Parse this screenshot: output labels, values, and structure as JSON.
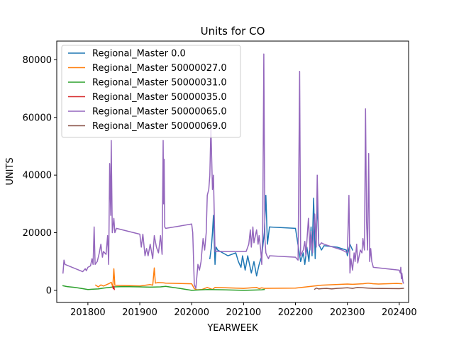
{
  "chart_data": {
    "type": "line",
    "title": "Units for CO",
    "xlabel": "YEARWEEK",
    "ylabel": "UNITS",
    "xlim": [
      201740,
      202418
    ],
    "ylim": [
      -4200,
      86500
    ],
    "x_ticks": [
      201800,
      201900,
      202000,
      202100,
      202200,
      202300,
      202400
    ],
    "y_ticks": [
      0,
      20000,
      40000,
      60000,
      80000
    ],
    "x_tick_labels": [
      "201800",
      "201900",
      "202000",
      "202100",
      "202200",
      "202300",
      "202400"
    ],
    "y_tick_labels": [
      "0",
      "20000",
      "40000",
      "60000",
      "80000"
    ],
    "grid": false,
    "legend_position": "upper-left",
    "series": [
      {
        "name": "Regional_Master 0.0",
        "color": "#1f77b4",
        "points": [
          [
            202035,
            11000
          ],
          [
            202038,
            15000
          ],
          [
            202040,
            20000
          ],
          [
            202042,
            26000
          ],
          [
            202045,
            9000
          ],
          [
            202047,
            15000
          ],
          [
            202050,
            14000
          ],
          [
            202070,
            12000
          ],
          [
            202085,
            13000
          ],
          [
            202090,
            10000
          ],
          [
            202095,
            8000
          ],
          [
            202098,
            12000
          ],
          [
            202100,
            10000
          ],
          [
            202103,
            7000
          ],
          [
            202108,
            12000
          ],
          [
            202115,
            6000
          ],
          [
            202120,
            10000
          ],
          [
            202125,
            5000
          ],
          [
            202130,
            9000
          ],
          [
            202135,
            12000
          ],
          [
            202140,
            20000
          ],
          [
            202143,
            33000
          ],
          [
            202146,
            16000
          ],
          [
            202150,
            22000
          ],
          [
            202200,
            21500
          ],
          [
            202210,
            10000
          ],
          [
            202215,
            13000
          ],
          [
            202218,
            9000
          ],
          [
            202222,
            15000
          ],
          [
            202226,
            10000
          ],
          [
            202230,
            22000
          ],
          [
            202232,
            12000
          ],
          [
            202235,
            32000
          ],
          [
            202238,
            11000
          ],
          [
            202242,
            30000
          ],
          [
            202245,
            16000
          ],
          [
            202250,
            14000
          ],
          [
            202255,
            15500
          ],
          [
            202280,
            15000
          ],
          [
            202298,
            14000
          ],
          [
            202300,
            12000
          ],
          [
            202305,
            16000
          ],
          [
            202310,
            14000
          ]
        ]
      },
      {
        "name": "Regional_Master 50000027.0",
        "color": "#ff7f0e",
        "points": [
          [
            201815,
            1800
          ],
          [
            201820,
            1200
          ],
          [
            201825,
            1900
          ],
          [
            201830,
            1500
          ],
          [
            201840,
            2300
          ],
          [
            201845,
            2800
          ],
          [
            201848,
            1200
          ],
          [
            201850,
            7500
          ],
          [
            201852,
            1800
          ],
          [
            201870,
            1700
          ],
          [
            201900,
            1500
          ],
          [
            201920,
            2000
          ],
          [
            201925,
            1800
          ],
          [
            201928,
            7800
          ],
          [
            201930,
            2500
          ],
          [
            201935,
            2700
          ],
          [
            201945,
            2600
          ],
          [
            201950,
            2500
          ],
          [
            202000,
            2300
          ],
          [
            202005,
            600
          ],
          [
            202010,
            200
          ],
          [
            202020,
            300
          ],
          [
            202030,
            1000
          ],
          [
            202040,
            300
          ],
          [
            202045,
            1000
          ],
          [
            202100,
            700
          ],
          [
            202125,
            1000
          ],
          [
            202130,
            600
          ],
          [
            202135,
            900
          ],
          [
            202140,
            700
          ],
          [
            202200,
            800
          ],
          [
            202250,
            1800
          ],
          [
            202300,
            2200
          ],
          [
            202310,
            2100
          ],
          [
            202330,
            2300
          ],
          [
            202340,
            2500
          ],
          [
            202350,
            2300
          ],
          [
            202360,
            2200
          ],
          [
            202395,
            2400
          ],
          [
            202405,
            2300
          ]
        ]
      },
      {
        "name": "Regional_Master 50000031.0",
        "color": "#2ca02c",
        "points": [
          [
            201752,
            1600
          ],
          [
            201760,
            1300
          ],
          [
            201775,
            1000
          ],
          [
            201790,
            600
          ],
          [
            201800,
            300
          ],
          [
            201810,
            400
          ],
          [
            201820,
            500
          ],
          [
            201830,
            800
          ],
          [
            201850,
            1200
          ],
          [
            201870,
            1300
          ],
          [
            201900,
            1200
          ],
          [
            201920,
            1100
          ],
          [
            201940,
            1200
          ],
          [
            201950,
            1400
          ],
          [
            201960,
            1100
          ],
          [
            201980,
            600
          ],
          [
            202000,
            0
          ],
          [
            202010,
            100
          ],
          [
            202030,
            300
          ],
          [
            202060,
            200
          ],
          [
            202100,
            0
          ],
          [
            202120,
            100
          ],
          [
            202135,
            200
          ],
          [
            202140,
            300
          ]
        ]
      },
      {
        "name": "Regional_Master 50000035.0",
        "color": "#d62728",
        "points": [
          [
            201848,
            1200
          ],
          [
            201849,
            600
          ],
          [
            201850,
            1400
          ],
          [
            201851,
            300
          ]
        ]
      },
      {
        "name": "Regional_Master 50000065.0",
        "color": "#9467bd",
        "points": [
          [
            201752,
            6000
          ],
          [
            201754,
            10500
          ],
          [
            201756,
            9000
          ],
          [
            201790,
            6500
          ],
          [
            201795,
            7500
          ],
          [
            201797,
            6800
          ],
          [
            201800,
            8000
          ],
          [
            201805,
            8500
          ],
          [
            201808,
            11000
          ],
          [
            201810,
            9000
          ],
          [
            201812,
            22000
          ],
          [
            201814,
            9000
          ],
          [
            201818,
            10000
          ],
          [
            201822,
            13000
          ],
          [
            201825,
            16000
          ],
          [
            201828,
            11500
          ],
          [
            201830,
            13500
          ],
          [
            201835,
            12500
          ],
          [
            201838,
            19000
          ],
          [
            201840,
            9000
          ],
          [
            201842,
            44000
          ],
          [
            201844,
            26000
          ],
          [
            201845,
            52000
          ],
          [
            201847,
            20000
          ],
          [
            201850,
            25000
          ],
          [
            201852,
            20000
          ],
          [
            201855,
            21500
          ],
          [
            201900,
            19500
          ],
          [
            201903,
            15000
          ],
          [
            201906,
            19500
          ],
          [
            201910,
            12000
          ],
          [
            201913,
            14500
          ],
          [
            201916,
            12000
          ],
          [
            201920,
            16000
          ],
          [
            201925,
            11000
          ],
          [
            201928,
            19000
          ],
          [
            201932,
            15000
          ],
          [
            201936,
            13000
          ],
          [
            201940,
            19000
          ],
          [
            201943,
            12500
          ],
          [
            201945,
            52000
          ],
          [
            201946,
            30000
          ],
          [
            201947,
            45500
          ],
          [
            201948,
            22000
          ],
          [
            201950,
            21500
          ],
          [
            202000,
            23000
          ],
          [
            202002,
            20000
          ],
          [
            202005,
            2000
          ],
          [
            202008,
            700
          ],
          [
            202012,
            9000
          ],
          [
            202015,
            7000
          ],
          [
            202018,
            10000
          ],
          [
            202022,
            18000
          ],
          [
            202025,
            14000
          ],
          [
            202028,
            20000
          ],
          [
            202030,
            33000
          ],
          [
            202033,
            35000
          ],
          [
            202035,
            40000
          ],
          [
            202037,
            57000
          ],
          [
            202040,
            35000
          ],
          [
            202042,
            40000
          ],
          [
            202045,
            13500
          ],
          [
            202048,
            13500
          ],
          [
            202050,
            13500
          ],
          [
            202055,
            13500
          ],
          [
            202100,
            13500
          ],
          [
            202105,
            13500
          ],
          [
            202110,
            16000
          ],
          [
            202113,
            21000
          ],
          [
            202115,
            15000
          ],
          [
            202118,
            22000
          ],
          [
            202120,
            16500
          ],
          [
            202125,
            21000
          ],
          [
            202128,
            16000
          ],
          [
            202130,
            19000
          ],
          [
            202133,
            14000
          ],
          [
            202135,
            9000
          ],
          [
            202137,
            22000
          ],
          [
            202139,
            82000
          ],
          [
            202141,
            18000
          ],
          [
            202143,
            13000
          ],
          [
            202145,
            12000
          ],
          [
            202148,
            11000
          ],
          [
            202150,
            12000
          ],
          [
            202200,
            11500
          ],
          [
            202205,
            10500
          ],
          [
            202208,
            76000
          ],
          [
            202210,
            12000
          ],
          [
            202215,
            14000
          ],
          [
            202218,
            17000
          ],
          [
            202220,
            12000
          ],
          [
            202225,
            25000
          ],
          [
            202228,
            14000
          ],
          [
            202230,
            20500
          ],
          [
            202233,
            13000
          ],
          [
            202237,
            26500
          ],
          [
            202240,
            15000
          ],
          [
            202242,
            40000
          ],
          [
            202245,
            15500
          ],
          [
            202248,
            16000
          ],
          [
            202250,
            16500
          ],
          [
            202255,
            16000
          ],
          [
            202290,
            14000
          ],
          [
            202300,
            13000
          ],
          [
            202303,
            33000
          ],
          [
            202305,
            6000
          ],
          [
            202307,
            11000
          ],
          [
            202310,
            7000
          ],
          [
            202313,
            13000
          ],
          [
            202315,
            10000
          ],
          [
            202318,
            16000
          ],
          [
            202320,
            9500
          ],
          [
            202325,
            14000
          ],
          [
            202328,
            13000
          ],
          [
            202330,
            18000
          ],
          [
            202333,
            14000
          ],
          [
            202335,
            63000
          ],
          [
            202337,
            24000
          ],
          [
            202339,
            14000
          ],
          [
            202341,
            47500
          ],
          [
            202343,
            10000
          ],
          [
            202345,
            14500
          ],
          [
            202347,
            10000
          ],
          [
            202350,
            8000
          ],
          [
            202400,
            7000
          ],
          [
            202402,
            6000
          ],
          [
            202403,
            8000
          ],
          [
            202404,
            4000
          ],
          [
            202405,
            6000
          ],
          [
            202407,
            3000
          ],
          [
            202408,
            2500
          ]
        ]
      },
      {
        "name": "Regional_Master 50000069.0",
        "color": "#8c564b",
        "points": [
          [
            202237,
            400
          ],
          [
            202240,
            800
          ],
          [
            202245,
            500
          ],
          [
            202250,
            600
          ],
          [
            202260,
            700
          ],
          [
            202270,
            500
          ],
          [
            202280,
            700
          ],
          [
            202290,
            800
          ],
          [
            202300,
            900
          ],
          [
            202310,
            700
          ],
          [
            202320,
            1000
          ],
          [
            202330,
            900
          ],
          [
            202340,
            800
          ],
          [
            202350,
            700
          ],
          [
            202400,
            600
          ],
          [
            202408,
            700
          ]
        ]
      }
    ]
  }
}
